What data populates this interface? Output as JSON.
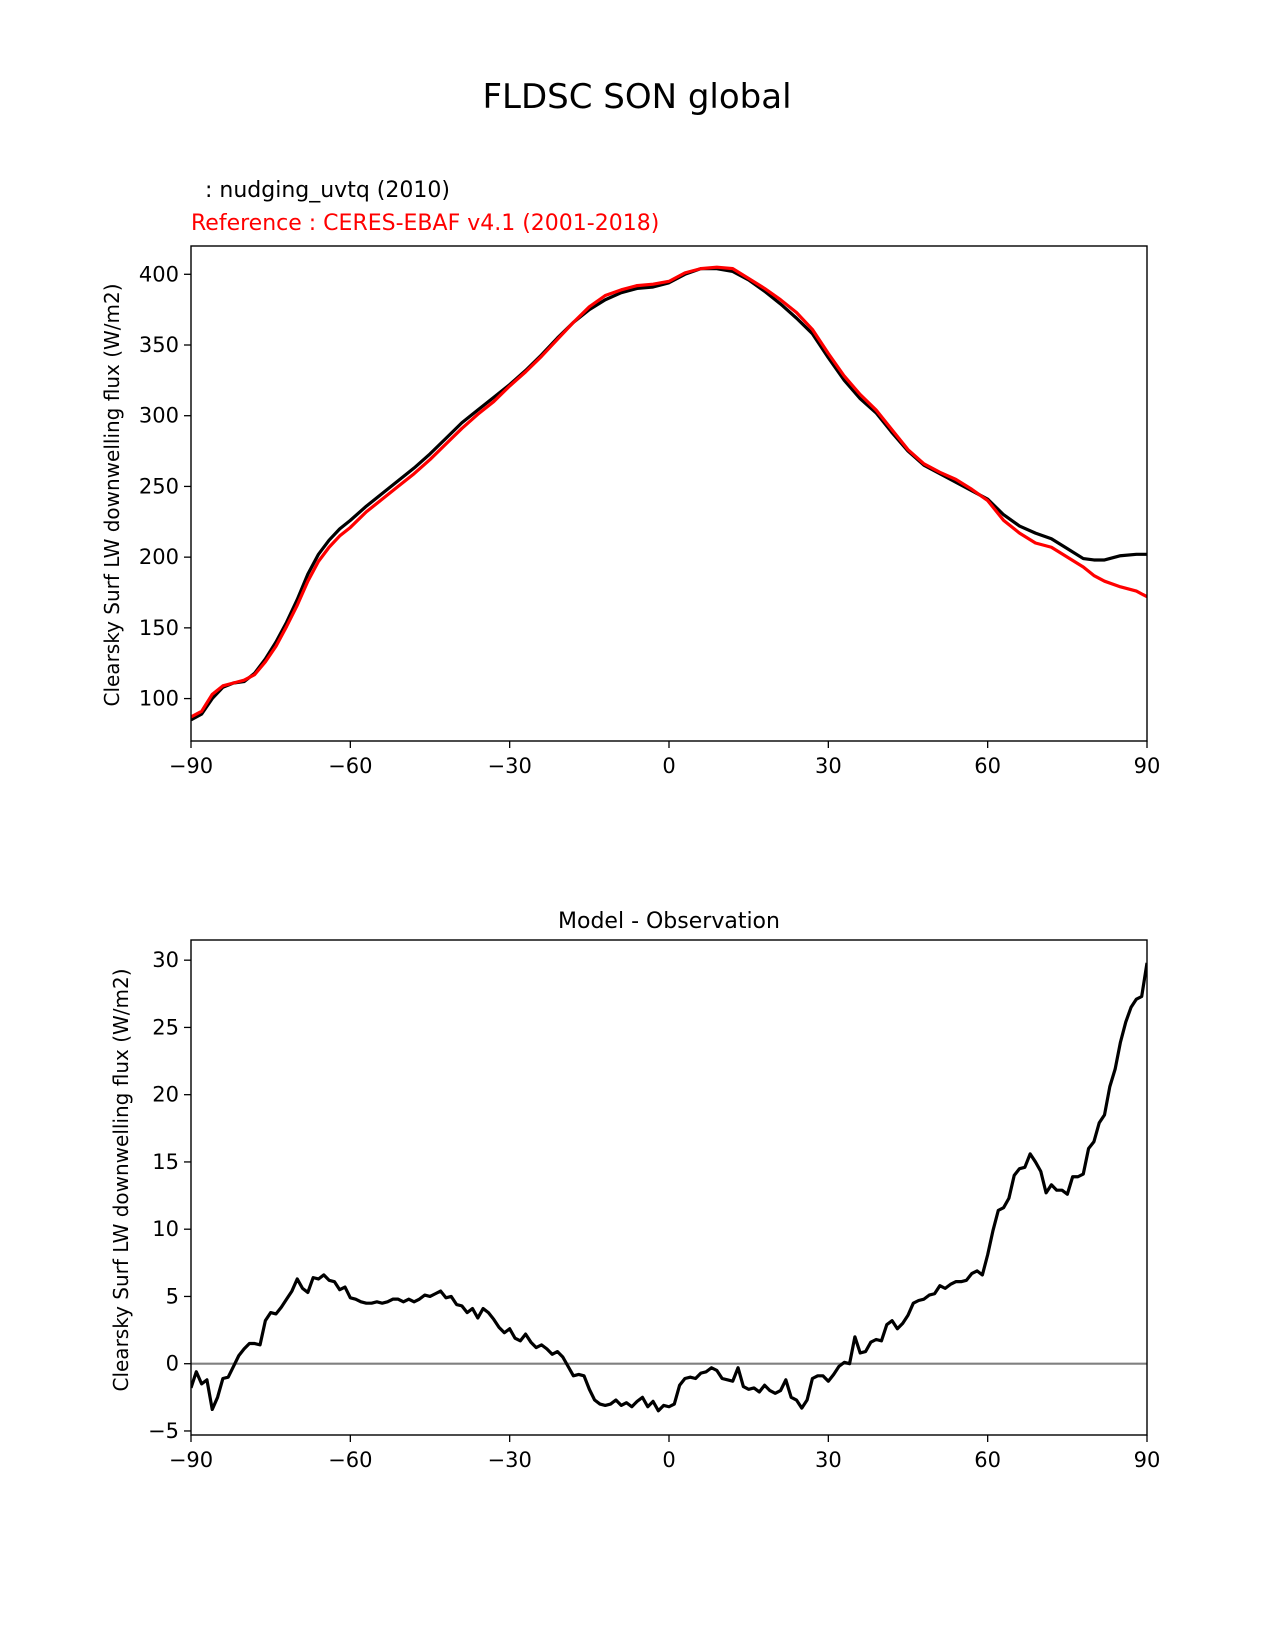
{
  "figure": {
    "title": "FLDSC SON global"
  },
  "chart_data": [
    {
      "type": "line",
      "title": "",
      "subtitle_model": "  : nudging_uvtq (2010)",
      "subtitle_reference": "Reference : CERES-EBAF v4.1 (2001-2018)",
      "xlabel": "",
      "ylabel": "Clearsky Surf LW downwelling flux (W/m2)",
      "xlim": [
        -90,
        90
      ],
      "ylim": [
        70,
        420
      ],
      "xticks": [
        -90,
        -60,
        -30,
        0,
        30,
        60,
        90
      ],
      "xtick_labels": [
        "−90",
        "−60",
        "−30",
        "0",
        "30",
        "60",
        "90"
      ],
      "yticks": [
        100,
        150,
        200,
        250,
        300,
        350,
        400
      ],
      "ytick_labels": [
        "100",
        "150",
        "200",
        "250",
        "300",
        "350",
        "400"
      ],
      "grid": false,
      "series": [
        {
          "color": "#000000",
          "x": [
            -90,
            -88,
            -86,
            -84,
            -82,
            -80,
            -78,
            -76,
            -74,
            -72,
            -70,
            -68,
            -66,
            -64,
            -62,
            -60,
            -57,
            -54,
            -51,
            -48,
            -45,
            -42,
            -39,
            -36,
            -33,
            -30,
            -27,
            -24,
            -21,
            -18,
            -15,
            -12,
            -9,
            -6,
            -3,
            0,
            3,
            6,
            9,
            12,
            15,
            18,
            21,
            24,
            27,
            30,
            33,
            36,
            39,
            42,
            45,
            48,
            51,
            54,
            57,
            60,
            63,
            66,
            69,
            72,
            75,
            78,
            80,
            82,
            85,
            88,
            90
          ],
          "y": [
            85,
            89,
            100,
            108,
            111,
            112,
            118,
            128,
            140,
            154,
            170,
            188,
            202,
            212,
            220,
            226,
            236,
            245,
            254,
            263,
            273,
            284,
            295,
            304,
            313,
            322,
            332,
            343,
            355,
            366,
            375,
            382,
            387,
            390,
            391,
            394,
            400,
            404,
            404,
            402,
            396,
            388,
            379,
            369,
            358,
            341,
            325,
            312,
            302,
            288,
            275,
            265,
            259,
            253,
            247,
            241,
            230,
            222,
            217,
            213,
            206,
            199,
            198,
            198,
            201,
            202,
            202
          ]
        },
        {
          "color": "#ff0000",
          "x": [
            -90,
            -88,
            -86,
            -84,
            -82,
            -80,
            -78,
            -76,
            -74,
            -72,
            -70,
            -68,
            -66,
            -64,
            -62,
            -60,
            -57,
            -54,
            -51,
            -48,
            -45,
            -42,
            -39,
            -36,
            -33,
            -30,
            -27,
            -24,
            -21,
            -18,
            -15,
            -12,
            -9,
            -6,
            -3,
            0,
            3,
            6,
            9,
            12,
            15,
            18,
            21,
            24,
            27,
            30,
            33,
            36,
            39,
            42,
            45,
            48,
            51,
            54,
            57,
            60,
            63,
            66,
            69,
            72,
            75,
            78,
            80,
            82,
            85,
            88,
            90
          ],
          "y": [
            87,
            91,
            103,
            109,
            111,
            113,
            117,
            126,
            137,
            151,
            166,
            183,
            197,
            207,
            215,
            221,
            232,
            241,
            250,
            259,
            269,
            280,
            291,
            301,
            310,
            321,
            331,
            342,
            354,
            366,
            377,
            385,
            389,
            392,
            393,
            395,
            401,
            404,
            405,
            404,
            397,
            390,
            382,
            373,
            361,
            344,
            328,
            315,
            304,
            290,
            276,
            266,
            260,
            255,
            248,
            240,
            226,
            217,
            210,
            207,
            200,
            193,
            187,
            183,
            179,
            176,
            172
          ]
        }
      ]
    },
    {
      "type": "line",
      "title": "Model - Observation",
      "xlabel": "",
      "ylabel": "Clearsky Surf LW downwelling flux (W/m2)",
      "xlim": [
        -90,
        90
      ],
      "ylim": [
        -5.3,
        31.5
      ],
      "xticks": [
        -90,
        -60,
        -30,
        0,
        30,
        60,
        90
      ],
      "xtick_labels": [
        "−90",
        "−60",
        "−30",
        "0",
        "30",
        "60",
        "90"
      ],
      "yticks": [
        -5,
        0,
        5,
        10,
        15,
        20,
        25,
        30
      ],
      "ytick_labels": [
        "−5",
        "0",
        "5",
        "10",
        "15",
        "20",
        "25",
        "30"
      ],
      "grid": false,
      "zero_line_color": "#808080",
      "series": [
        {
          "color": "#000000",
          "x": [
            -90,
            -89,
            -88,
            -87,
            -86,
            -85,
            -84,
            -83,
            -82,
            -81,
            -80,
            -79,
            -78,
            -77,
            -76,
            -75,
            -74,
            -73,
            -72,
            -71,
            -70,
            -69,
            -68,
            -67,
            -66,
            -65,
            -64,
            -63,
            -62,
            -61,
            -60,
            -59,
            -58,
            -57,
            -56,
            -55,
            -54,
            -53,
            -52,
            -51,
            -50,
            -49,
            -48,
            -47,
            -46,
            -45,
            -44,
            -43,
            -42,
            -41,
            -40,
            -39,
            -38,
            -37,
            -36,
            -35,
            -34,
            -33,
            -32,
            -31,
            -30,
            -29,
            -28,
            -27,
            -26,
            -25,
            -24,
            -23,
            -22,
            -21,
            -20,
            -19,
            -18,
            -17,
            -16,
            -15,
            -14,
            -13,
            -12,
            -11,
            -10,
            -9,
            -8,
            -7,
            -6,
            -5,
            -4,
            -3,
            -2,
            -1,
            0,
            1,
            2,
            3,
            4,
            5,
            6,
            7,
            8,
            9,
            10,
            11,
            12,
            13,
            14,
            15,
            16,
            17,
            18,
            19,
            20,
            21,
            22,
            23,
            24,
            25,
            26,
            27,
            28,
            29,
            30,
            31,
            32,
            33,
            34,
            35,
            36,
            37,
            38,
            39,
            40,
            41,
            42,
            43,
            44,
            45,
            46,
            47,
            48,
            49,
            50,
            51,
            52,
            53,
            54,
            55,
            56,
            57,
            58,
            59,
            60,
            61,
            62,
            63,
            64,
            65,
            66,
            67,
            68,
            69,
            70,
            71,
            72,
            73,
            74,
            75,
            76,
            77,
            78,
            79,
            80,
            81,
            82,
            83,
            84,
            85,
            86,
            87,
            88,
            89,
            90
          ],
          "y": [
            -1.8,
            -0.6,
            -1.5,
            -1.2,
            -3.4,
            -2.5,
            -1.1,
            -1.0,
            -0.2,
            0.6,
            1.1,
            1.5,
            1.5,
            1.4,
            3.2,
            3.8,
            3.7,
            4.2,
            4.8,
            5.4,
            6.3,
            5.6,
            5.3,
            6.4,
            6.3,
            6.6,
            6.2,
            6.1,
            5.5,
            5.7,
            4.9,
            4.8,
            4.6,
            4.5,
            4.5,
            4.6,
            4.5,
            4.6,
            4.8,
            4.8,
            4.6,
            4.8,
            4.6,
            4.8,
            5.1,
            5.0,
            5.2,
            5.4,
            4.9,
            5.0,
            4.4,
            4.3,
            3.8,
            4.1,
            3.4,
            4.1,
            3.8,
            3.3,
            2.7,
            2.3,
            2.6,
            1.9,
            1.7,
            2.2,
            1.6,
            1.2,
            1.4,
            1.1,
            0.7,
            0.9,
            0.5,
            -0.2,
            -0.9,
            -0.8,
            -0.9,
            -1.9,
            -2.7,
            -3.0,
            -3.1,
            -3.0,
            -2.7,
            -3.1,
            -2.9,
            -3.2,
            -2.8,
            -2.5,
            -3.2,
            -2.8,
            -3.5,
            -3.1,
            -3.2,
            -3.0,
            -1.6,
            -1.1,
            -1.0,
            -1.1,
            -0.7,
            -0.6,
            -0.3,
            -0.5,
            -1.1,
            -1.2,
            -1.3,
            -0.3,
            -1.7,
            -1.9,
            -1.8,
            -2.1,
            -1.6,
            -2.0,
            -2.2,
            -2.0,
            -1.2,
            -2.5,
            -2.7,
            -3.3,
            -2.7,
            -1.1,
            -0.9,
            -0.9,
            -1.3,
            -0.8,
            -0.2,
            0.1,
            0.0,
            2.0,
            0.8,
            0.9,
            1.6,
            1.8,
            1.7,
            2.9,
            3.2,
            2.6,
            3.0,
            3.6,
            4.5,
            4.7,
            4.8,
            5.1,
            5.2,
            5.8,
            5.6,
            5.9,
            6.1,
            6.1,
            6.2,
            6.7,
            6.9,
            6.6,
            8.1,
            9.9,
            11.4,
            11.6,
            12.3,
            14.0,
            14.5,
            14.6,
            15.6,
            15.0,
            14.3,
            12.7,
            13.3,
            12.9,
            12.9,
            12.6,
            13.9,
            13.9,
            14.1,
            16.0,
            16.5,
            17.9,
            18.5,
            20.6,
            21.9,
            23.9,
            25.4,
            26.5,
            27.1,
            27.3,
            29.8
          ]
        }
      ]
    }
  ]
}
